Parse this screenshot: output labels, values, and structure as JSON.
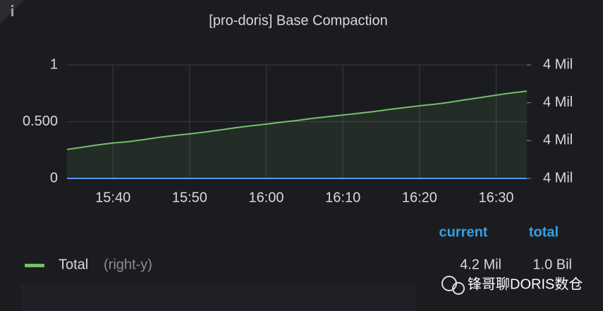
{
  "chart_data": {
    "type": "line",
    "title": "[pro-doris] Base Compaction",
    "x": [
      "15:34",
      "15:36",
      "15:38",
      "15:40",
      "15:42",
      "15:44",
      "15:46",
      "15:48",
      "15:50",
      "15:52",
      "15:54",
      "15:56",
      "15:58",
      "16:00",
      "16:02",
      "16:04",
      "16:06",
      "16:08",
      "16:10",
      "16:12",
      "16:14",
      "16:16",
      "16:18",
      "16:20",
      "16:22",
      "16:24",
      "16:26",
      "16:28",
      "16:30",
      "16:32",
      "16:34"
    ],
    "xlim": [
      "15:34",
      "16:34"
    ],
    "xticks": [
      "15:40",
      "15:50",
      "16:00",
      "16:10",
      "16:20",
      "16:30"
    ],
    "ylim": [
      0,
      1
    ],
    "yticks": [
      0,
      {
        "value": 0.5,
        "label": "0.500"
      },
      1
    ],
    "y2lim": [
      4160000,
      4220000
    ],
    "y2ticks": [
      {
        "value": 4160000,
        "label": "4 Mil"
      },
      {
        "value": 4180000,
        "label": "4 Mil"
      },
      {
        "value": 4200000,
        "label": "4 Mil"
      },
      {
        "value": 4220000,
        "label": "4 Mil"
      }
    ],
    "grid": true,
    "series": [
      {
        "name": "Total",
        "axis_note": "(right-y)",
        "axis": "y2",
        "color": "#73bf69",
        "values": [
          4175300,
          4176500,
          4177700,
          4178700,
          4179400,
          4180500,
          4181700,
          4182700,
          4183500,
          4184500,
          4185600,
          4186800,
          4187800,
          4188700,
          4189700,
          4190600,
          4191700,
          4192600,
          4193500,
          4194400,
          4195300,
          4196400,
          4197400,
          4198400,
          4199200,
          4200300,
          4201600,
          4202800,
          4204000,
          4205200,
          4206100
        ],
        "current": "4.2 Mil",
        "total": "1.0 Bil"
      },
      {
        "color": "#5794f2",
        "values": [
          0,
          0,
          0,
          0,
          0,
          0,
          0,
          0,
          0,
          0,
          0,
          0,
          0,
          0,
          0,
          0,
          0,
          0,
          0,
          0,
          0,
          0,
          0,
          0,
          0,
          0,
          0,
          0,
          0,
          0,
          0
        ]
      }
    ],
    "legend_headers": [
      "current",
      "total"
    ],
    "watermark": "锋哥聊DORIS数仓"
  }
}
